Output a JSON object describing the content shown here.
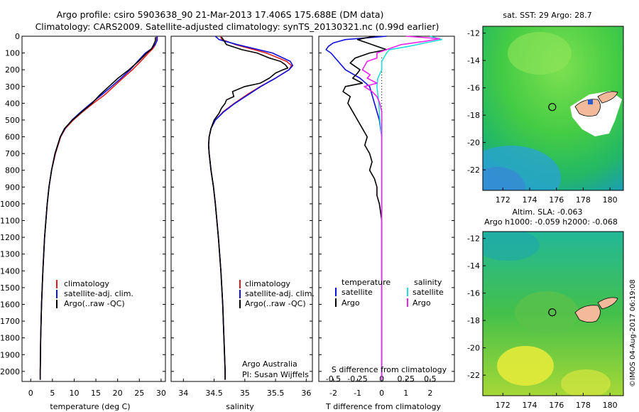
{
  "title": {
    "line1": "Argo profile: csiro 5903638_90 21-Mar-2013 17.406S 175.688E (DM data)",
    "line2": "Climatology: CARS2009. Satellite-adjusted climatology: synTS_20130321.nc (0.99d earlier)"
  },
  "colors": {
    "climatology": "#e02020",
    "satellite": "#1010dd",
    "argo": "#000000",
    "satellite_s": "#22dddd",
    "argo_s": "#ee22ee"
  },
  "depth_ticks": [
    0,
    100,
    200,
    300,
    400,
    500,
    600,
    700,
    800,
    900,
    1000,
    1100,
    1200,
    1300,
    1400,
    1500,
    1600,
    1700,
    1800,
    1900,
    2000
  ],
  "chart_data": [
    {
      "type": "line",
      "name": "temperature-profile",
      "xlabel": "temperature (deg C)",
      "xlim": [
        -2,
        31
      ],
      "ylim": [
        2060,
        0
      ],
      "xticks": [
        0,
        5,
        10,
        15,
        20,
        25,
        30
      ],
      "legend": [
        "climatology",
        "satellite-adj. clim.",
        "Argo(..raw -QC)"
      ],
      "series": [
        {
          "name": "climatology",
          "depth": [
            0,
            25,
            50,
            75,
            100,
            150,
            200,
            250,
            300,
            350,
            400,
            450,
            500,
            550,
            600,
            700,
            800,
            900,
            1000,
            1200,
            1400,
            1600,
            1800,
            2000,
            2050
          ],
          "values": [
            29.0,
            29.0,
            28.7,
            28.1,
            27.1,
            25.3,
            23.4,
            21.2,
            19.1,
            17.0,
            14.4,
            12.0,
            9.8,
            8.0,
            6.9,
            5.7,
            4.8,
            4.2,
            3.8,
            3.2,
            2.8,
            2.5,
            2.3,
            2.2,
            2.2
          ]
        },
        {
          "name": "satellite",
          "depth": [
            0,
            25,
            50,
            75,
            100,
            150,
            200,
            250,
            300,
            350,
            400,
            450,
            500,
            550,
            600,
            700,
            800,
            900,
            1000,
            1200,
            1400,
            1600,
            1800,
            2000,
            2050
          ],
          "values": [
            29.1,
            29.1,
            28.6,
            27.8,
            26.4,
            24.6,
            22.9,
            20.8,
            18.6,
            16.3,
            13.9,
            11.6,
            9.5,
            7.9,
            6.8,
            5.6,
            4.8,
            4.2,
            3.8,
            3.2,
            2.8,
            2.5,
            2.3,
            2.2,
            2.2
          ]
        },
        {
          "name": "argo",
          "depth": [
            5,
            25,
            50,
            75,
            100,
            150,
            200,
            250,
            300,
            350,
            400,
            450,
            500,
            550,
            600,
            700,
            800,
            900,
            1000,
            1200,
            1400,
            1600,
            1800,
            2000,
            2050
          ],
          "values": [
            28.7,
            28.7,
            28.3,
            27.8,
            26.7,
            24.8,
            22.6,
            20.1,
            18.0,
            15.9,
            14.1,
            11.8,
            9.6,
            7.8,
            6.8,
            5.6,
            4.8,
            4.2,
            3.8,
            3.2,
            2.8,
            2.5,
            2.3,
            2.2,
            2.2
          ]
        }
      ]
    },
    {
      "type": "line",
      "name": "salinity-profile",
      "xlabel": "salinity",
      "xlim": [
        33.8,
        36.1
      ],
      "ylim": [
        2060,
        0
      ],
      "xticks": [
        34,
        34.5,
        35,
        35.5,
        36
      ],
      "xticklabels": [
        "34",
        "34.5",
        "35",
        "35.5",
        "36"
      ],
      "legend": [
        "climatology",
        "satellite-adj. clim.",
        "Argo(..raw -QC)"
      ],
      "annotation": [
        "Argo Australia",
        "PI: Susan Wijffels"
      ],
      "series": [
        {
          "name": "climatology",
          "depth": [
            0,
            20,
            50,
            100,
            150,
            175,
            200,
            250,
            300,
            350,
            400,
            450,
            500,
            550,
            600,
            650,
            700,
            800,
            900,
            1000,
            1200,
            1400,
            1600,
            1800,
            2000,
            2050
          ],
          "values": [
            34.6,
            34.63,
            34.85,
            35.35,
            35.68,
            35.76,
            35.72,
            35.5,
            35.25,
            35.03,
            34.83,
            34.65,
            34.52,
            34.45,
            34.42,
            34.41,
            34.42,
            34.45,
            34.49,
            34.52,
            34.57,
            34.61,
            34.64,
            34.66,
            34.68,
            34.68
          ]
        },
        {
          "name": "satellite",
          "depth": [
            0,
            20,
            50,
            100,
            150,
            175,
            200,
            250,
            300,
            350,
            400,
            450,
            500,
            550,
            600,
            650,
            700,
            800,
            900,
            1000,
            1200,
            1400,
            1600,
            1800,
            2000,
            2050
          ],
          "values": [
            34.52,
            34.58,
            34.88,
            35.45,
            35.74,
            35.78,
            35.72,
            35.5,
            35.26,
            35.05,
            34.84,
            34.66,
            34.52,
            34.45,
            34.42,
            34.41,
            34.42,
            34.45,
            34.49,
            34.52,
            34.57,
            34.61,
            34.64,
            34.66,
            34.68,
            34.68
          ]
        },
        {
          "name": "argo",
          "depth": [
            5,
            20,
            50,
            80,
            100,
            130,
            150,
            170,
            190,
            200,
            220,
            250,
            280,
            300,
            330,
            360,
            380,
            400,
            430,
            460,
            500,
            550,
            600,
            650,
            700,
            800,
            900,
            1000,
            1200,
            1400,
            1600,
            1800,
            2000,
            2050
          ],
          "values": [
            34.62,
            34.65,
            34.7,
            34.95,
            35.2,
            35.4,
            35.58,
            35.66,
            35.7,
            35.62,
            35.5,
            35.4,
            35.25,
            35.0,
            34.8,
            34.82,
            34.7,
            34.68,
            34.62,
            34.58,
            34.5,
            34.45,
            34.42,
            34.41,
            34.42,
            34.45,
            34.49,
            34.52,
            34.57,
            34.61,
            34.64,
            34.66,
            34.68,
            34.68
          ]
        }
      ]
    },
    {
      "type": "line",
      "name": "difference-profile",
      "xlabel": "T difference from climatology",
      "xlabel_top": "S difference from climatology",
      "xlim": [
        -2.6,
        3.0
      ],
      "ylim": [
        2060,
        0
      ],
      "xticks": [
        -2,
        -1,
        0,
        1,
        2
      ],
      "xticks_top": [
        -0.5,
        -0.25,
        0,
        0.25,
        0.5
      ],
      "xticklabels_top": [
        "-0.5",
        "-0.25",
        "0",
        "0.25",
        "0.5"
      ],
      "legend": [
        "temperature",
        "satellite",
        "Argo",
        "salinity",
        "satellite",
        "Argo"
      ],
      "series": [
        {
          "name": "temperature-satellite",
          "depth": [
            0,
            20,
            40,
            60,
            80,
            100,
            150,
            200,
            250,
            300,
            400,
            500,
            600,
            700,
            800,
            900,
            1000,
            1200,
            1500,
            2000,
            2050
          ],
          "values": [
            0.2,
            -1.5,
            -2.0,
            -2.2,
            -2.3,
            -2.1,
            -1.8,
            -1.5,
            -0.9,
            -0.5,
            -0.3,
            -0.1,
            0.0,
            0.0,
            0.0,
            0.0,
            0.0,
            0.0,
            0.0,
            0.0,
            0.0
          ]
        },
        {
          "name": "temperature-argo",
          "depth": [
            0,
            20,
            40,
            60,
            80,
            100,
            130,
            160,
            200,
            220,
            250,
            280,
            300,
            330,
            360,
            400,
            450,
            500,
            550,
            600,
            650,
            700,
            750,
            800,
            850,
            900,
            950,
            1000,
            1100,
            1300,
            1500,
            1800,
            2000,
            2050
          ],
          "values": [
            -0.3,
            -1.0,
            -0.6,
            -0.2,
            0.2,
            -0.5,
            -1.1,
            -1.3,
            -0.9,
            -1.0,
            -1.2,
            -0.8,
            -1.5,
            -1.6,
            -1.3,
            -1.4,
            -1.2,
            -1.0,
            -0.8,
            -0.6,
            -0.7,
            -0.5,
            -0.4,
            -0.5,
            -0.3,
            -0.2,
            -0.2,
            -0.1,
            0.0,
            0.0,
            0.0,
            0.0,
            0.0,
            0.0
          ]
        },
        {
          "name": "salinity-satellite",
          "depth": [
            0,
            20,
            40,
            60,
            80,
            100,
            150,
            200,
            250,
            300,
            400,
            500,
            600,
            700,
            800,
            1000,
            1500,
            2000,
            2050
          ],
          "values": [
            0.5,
            0.62,
            0.45,
            0.28,
            0.08,
            0.05,
            0.0,
            0.0,
            -0.04,
            -0.05,
            -0.03,
            -0.02,
            0.0,
            0.0,
            0.0,
            0.0,
            0.0,
            0.0,
            0.0
          ]
        },
        {
          "name": "salinity-argo",
          "depth": [
            0,
            15,
            30,
            50,
            70,
            100,
            130,
            150,
            180,
            200,
            230,
            250,
            280,
            300,
            330,
            360,
            400,
            450,
            500,
            600,
            700,
            800,
            1000,
            1500,
            2000,
            2050
          ],
          "values": [
            0.25,
            0.6,
            0.45,
            0.2,
            0.1,
            -0.05,
            -0.05,
            -0.15,
            -0.18,
            -0.2,
            -0.12,
            -0.15,
            -0.05,
            -0.18,
            -0.1,
            -0.05,
            -0.02,
            0.0,
            0.0,
            0.0,
            0.0,
            0.0,
            0.0,
            0.0,
            0.0,
            0.0
          ]
        }
      ]
    },
    {
      "type": "heatmap",
      "name": "sst-map",
      "title": "sat. SST: 29 Argo: 28.7",
      "xlim": [
        170.5,
        181
      ],
      "ylim": [
        -23.5,
        -11.5
      ],
      "xticks": [
        172,
        174,
        176,
        178,
        180
      ],
      "yticks": [
        -12,
        -14,
        -16,
        -18,
        -20,
        -22
      ],
      "argo_position": [
        175.688,
        -17.406
      ]
    },
    {
      "type": "heatmap",
      "name": "sla-map",
      "title_line1": "Altim. SLA: -0.063",
      "title_line2": "Argo h1000: -0.059 h2000: -0.068",
      "xlim": [
        170.5,
        181
      ],
      "ylim": [
        -23.5,
        -11.5
      ],
      "xticks": [
        172,
        174,
        176,
        178,
        180
      ],
      "yticks": [
        -12,
        -14,
        -16,
        -18,
        -20,
        -22
      ],
      "argo_position": [
        175.688,
        -17.406
      ]
    }
  ],
  "credit": "©IMOS 04-Aug-2017 06:19:08"
}
